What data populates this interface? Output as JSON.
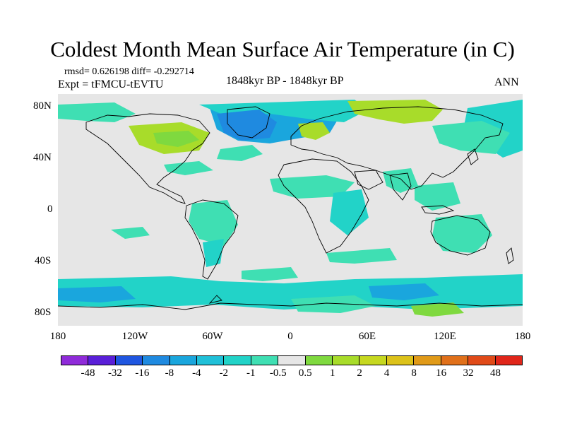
{
  "title": "Coldest Month Mean Surface Air Temperature (in C)",
  "stats": "rmsd= 0.626198 diff= -0.292714",
  "expt": "Expt = tFMCU-tEVTU",
  "period": "1848kyr BP - 1848kyr BP",
  "season": "ANN",
  "y_axis": [
    "80N",
    "40N",
    "0",
    "40S",
    "80S"
  ],
  "x_axis": [
    "180",
    "120W",
    "60W",
    "0",
    "60E",
    "120E",
    "180"
  ],
  "colorbar": {
    "colors": [
      "#8f2bd9",
      "#5a1fd8",
      "#1f56e0",
      "#1f8ae0",
      "#1aa6dd",
      "#20c0d8",
      "#22d3c8",
      "#3fdfb3",
      "#e6e6e6",
      "#7fd93f",
      "#a8dc2a",
      "#c6d820",
      "#dcc21a",
      "#e09a18",
      "#e0701a",
      "#e04a18",
      "#e0261a"
    ],
    "labels": [
      "-48",
      "-32",
      "-16",
      "-8",
      "-4",
      "-2",
      "-1",
      "-0.5",
      "0.5",
      "1",
      "2",
      "4",
      "8",
      "16",
      "32",
      "48"
    ]
  },
  "anomaly_colors": {
    "background": "#e6e6e6",
    "cool1": "#3fdfb3",
    "cool2": "#22d3c8",
    "cool3": "#1aa6dd",
    "warm1": "#a8dc2a",
    "warm2": "#7fd93f"
  }
}
